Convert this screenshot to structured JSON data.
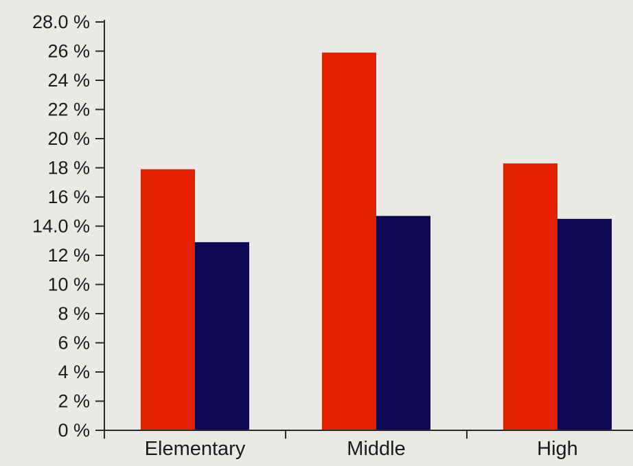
{
  "chart_data": {
    "type": "bar",
    "categories": [
      "Elementary",
      "Middle",
      "High"
    ],
    "series": [
      {
        "values": [
          17.9,
          25.9,
          18.3
        ],
        "color": "#e32000"
      },
      {
        "values": [
          12.9,
          14.7,
          14.5
        ],
        "color": "#0d0755"
      }
    ],
    "title": "",
    "xlabel": "",
    "ylabel": "",
    "ylim": [
      0,
      28
    ],
    "y_ticks": [
      {
        "value": 0,
        "label": "0 %"
      },
      {
        "value": 2,
        "label": "2 %"
      },
      {
        "value": 4,
        "label": "4 %"
      },
      {
        "value": 6,
        "label": "6 %"
      },
      {
        "value": 8,
        "label": "8 %"
      },
      {
        "value": 10,
        "label": "10 %"
      },
      {
        "value": 12,
        "label": "12 %"
      },
      {
        "value": 14,
        "label": "14.0 %"
      },
      {
        "value": 16,
        "label": "16 %"
      },
      {
        "value": 18,
        "label": "18 %"
      },
      {
        "value": 20,
        "label": "20 %"
      },
      {
        "value": 22,
        "label": "22 %"
      },
      {
        "value": 24,
        "label": "24 %"
      },
      {
        "value": 26,
        "label": "26 %"
      },
      {
        "value": 28,
        "label": "28.0 %"
      }
    ],
    "grid": false,
    "legend": "none",
    "background": "#ebe9e6"
  }
}
